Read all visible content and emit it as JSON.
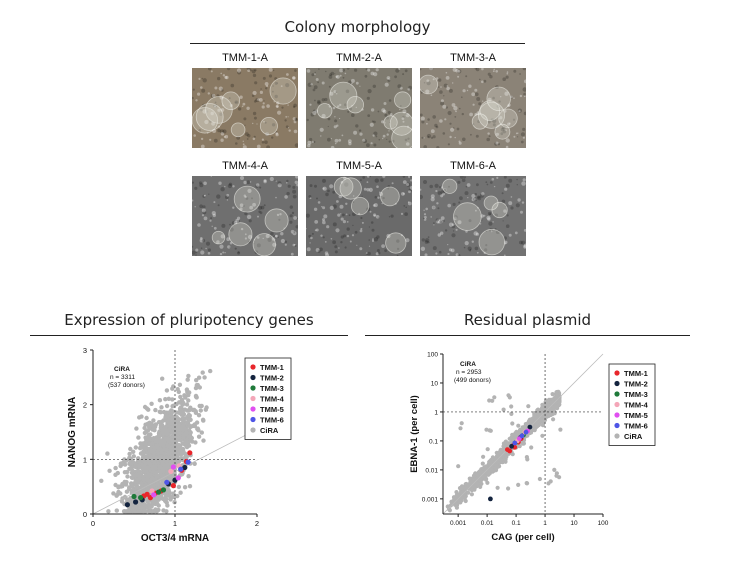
{
  "morphology": {
    "title": "Colony morphology",
    "tiles": [
      {
        "label": "TMM-1-A",
        "tone": "#8a7a64"
      },
      {
        "label": "TMM-2-A",
        "tone": "#7f7b70"
      },
      {
        "label": "TMM-3-A",
        "tone": "#8b8377"
      },
      {
        "label": "TMM-4-A",
        "tone": "#6f6f6f"
      },
      {
        "label": "TMM-5-A",
        "tone": "#6a6a6a"
      },
      {
        "label": "TMM-6-A",
        "tone": "#727272"
      }
    ]
  },
  "colors": {
    "TMM-1": "#e8262b",
    "TMM-2": "#14243f",
    "TMM-3": "#1f7a3a",
    "TMM-4": "#f4a6b8",
    "TMM-5": "#e04ff0",
    "TMM-6": "#4e55e6",
    "CiRA": "#b3b3b3"
  },
  "chart_data": [
    {
      "type": "scatter",
      "title": "Expression of pluripotency genes",
      "xlabel": "OCT3/4 mRNA",
      "ylabel": "NANOG  mRNA",
      "xlim": [
        0,
        2
      ],
      "ylim": [
        0,
        3
      ],
      "xticks": [
        "0",
        "1",
        "2"
      ],
      "yticks": [
        "0",
        "1",
        "2",
        "3"
      ],
      "reference_lines": {
        "x": 1,
        "y": 1,
        "diagonal": true
      },
      "annotation": {
        "name": "CiRA",
        "n": "n = 3311",
        "donors": "(537 donors)"
      },
      "legend_position": "top-right",
      "legend": [
        "TMM-1",
        "TMM-2",
        "TMM-3",
        "TMM-4",
        "TMM-5",
        "TMM-6",
        "CiRA"
      ],
      "series": [
        {
          "name": "TMM-1",
          "points": [
            [
              0.62,
              0.33
            ],
            [
              0.66,
              0.36
            ],
            [
              0.7,
              0.3
            ],
            [
              0.76,
              0.38
            ],
            [
              0.83,
              0.42
            ],
            [
              0.98,
              0.52
            ],
            [
              1.08,
              0.8
            ],
            [
              1.14,
              0.96
            ],
            [
              1.18,
              1.12
            ]
          ]
        },
        {
          "name": "TMM-2",
          "points": [
            [
              0.42,
              0.17
            ],
            [
              0.52,
              0.22
            ],
            [
              0.6,
              0.26
            ],
            [
              0.92,
              0.55
            ],
            [
              1.0,
              0.62
            ],
            [
              1.12,
              0.85
            ]
          ]
        },
        {
          "name": "TMM-3",
          "points": [
            [
              0.5,
              0.32
            ],
            [
              0.58,
              0.3
            ],
            [
              0.8,
              0.4
            ],
            [
              0.86,
              0.44
            ]
          ]
        },
        {
          "name": "TMM-4",
          "points": [
            [
              0.72,
              0.42
            ],
            [
              0.95,
              0.78
            ],
            [
              1.05,
              0.88
            ]
          ]
        },
        {
          "name": "TMM-5",
          "points": [
            [
              0.74,
              0.35
            ],
            [
              0.98,
              0.86
            ],
            [
              1.04,
              0.66
            ]
          ]
        },
        {
          "name": "TMM-6",
          "points": [
            [
              0.9,
              0.58
            ],
            [
              1.07,
              0.82
            ],
            [
              1.16,
              0.95
            ]
          ]
        }
      ]
    },
    {
      "type": "scatter",
      "title": "Residual plasmid",
      "xlabel": "CAG (per cell)",
      "ylabel": "EBNA-1 (per cell)",
      "xscale": "log",
      "yscale": "log",
      "xlim": [
        0.0003,
        100
      ],
      "ylim": [
        0.0003,
        100
      ],
      "xticks": [
        "0.001",
        "0.01",
        "0.1",
        "1",
        "10",
        "100"
      ],
      "yticks": [
        "0.001",
        "0.01",
        "0.1",
        "1",
        "10",
        "100"
      ],
      "reference_lines": {
        "x": 1,
        "y": 1,
        "diagonal": true
      },
      "annotation": {
        "name": "CiRA",
        "n": "n = 2953",
        "donors": "(499 donors)"
      },
      "legend_position": "top-right",
      "legend": [
        "TMM-1",
        "TMM-2",
        "TMM-3",
        "TMM-4",
        "TMM-5",
        "TMM-6",
        "CiRA"
      ],
      "series": [
        {
          "name": "TMM-1",
          "points": [
            [
              0.05,
              0.05
            ],
            [
              0.06,
              0.045
            ],
            [
              0.08,
              0.07
            ],
            [
              0.09,
              0.06
            ],
            [
              0.12,
              0.09
            ],
            [
              0.15,
              0.12
            ]
          ]
        },
        {
          "name": "TMM-2",
          "points": [
            [
              0.013,
              0.001
            ],
            [
              0.07,
              0.065
            ],
            [
              0.14,
              0.13
            ],
            [
              0.3,
              0.3
            ]
          ]
        },
        {
          "name": "TMM-3",
          "points": [
            [
              0.1,
              0.09
            ],
            [
              0.18,
              0.16
            ]
          ]
        },
        {
          "name": "TMM-4",
          "points": [
            [
              0.11,
              0.1
            ],
            [
              0.2,
              0.2
            ]
          ]
        },
        {
          "name": "TMM-5",
          "points": [
            [
              0.13,
              0.12
            ],
            [
              0.25,
              0.22
            ]
          ]
        },
        {
          "name": "TMM-6",
          "points": [
            [
              0.09,
              0.085
            ],
            [
              0.16,
              0.15
            ],
            [
              0.22,
              0.2
            ]
          ]
        }
      ]
    }
  ]
}
